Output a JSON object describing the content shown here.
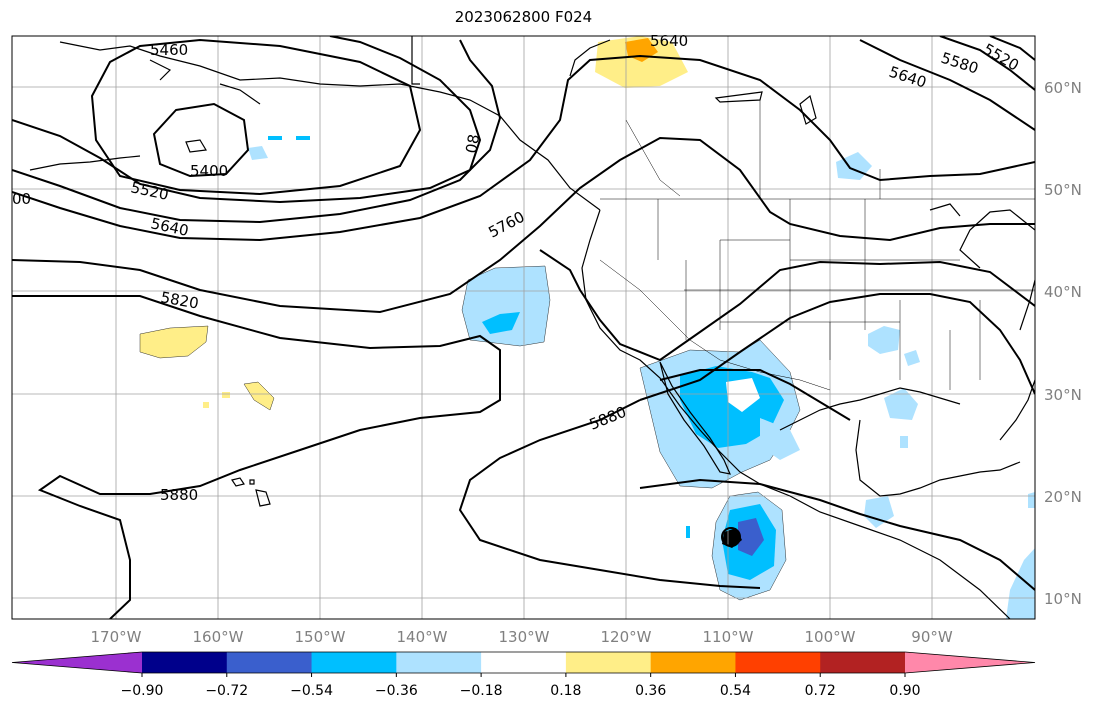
{
  "title": "2023062800 F024",
  "map": {
    "lon_ticks": [
      "170°W",
      "160°W",
      "150°W",
      "140°W",
      "130°W",
      "120°W",
      "110°W",
      "100°W",
      "90°W"
    ],
    "lat_ticks": [
      "60°N",
      "50°N",
      "40°N",
      "30°N",
      "20°N",
      "10°N"
    ],
    "contour_labels": [
      "5460",
      "5400",
      "5520",
      "5640",
      "5820",
      "5880",
      "5760",
      "5880",
      "5640",
      "5640",
      "5580",
      "5520",
      "00",
      "08"
    ]
  },
  "colorbar": {
    "ticks": [
      "−0.90",
      "−0.72",
      "−0.54",
      "−0.36",
      "−0.18",
      "0.18",
      "0.36",
      "0.54",
      "0.72",
      "0.90"
    ],
    "colors": [
      "#9b30d0",
      "#00008b",
      "#3a5fcd",
      "#00bfff",
      "#aee2ff",
      "#ffffff",
      "#ffee88",
      "#ffa500",
      "#ff4000",
      "#b22222",
      "#ff88aa"
    ]
  }
}
